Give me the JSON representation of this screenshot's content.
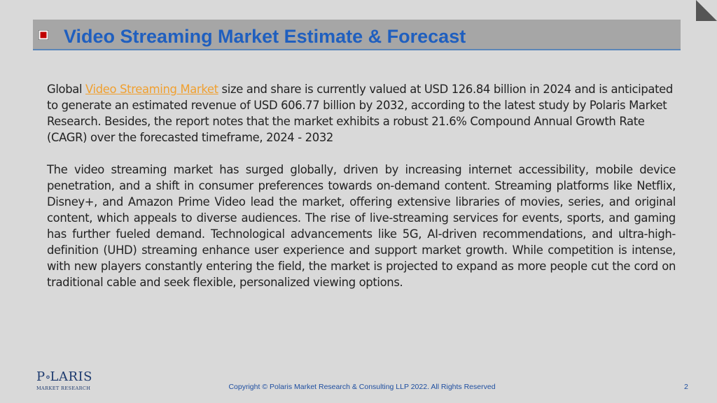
{
  "slide": {
    "title": "Video Streaming Market Estimate & Forecast",
    "page_number": "2"
  },
  "content": {
    "p1_prefix": "Global ",
    "p1_link": "Video Streaming Market",
    "p1_suffix": " size and share is currently valued at USD 126.84 billion in 2024 and is anticipated to generate an estimated revenue of USD 606.77 billion by 2032, according to the latest study by Polaris Market Research. Besides, the report notes that the market exhibits a robust 21.6% Compound Annual Growth Rate (CAGR) over the forecasted timeframe, 2024 - 2032",
    "p2": "The video streaming market has surged globally, driven by increasing internet accessibility, mobile device penetration, and a shift in consumer preferences towards on-demand content. Streaming platforms like Netflix, Disney+, and Amazon Prime Video lead the market, offering extensive libraries of movies, series, and original content, which appeals to diverse audiences. The rise of live-streaming services for events, sports, and gaming has further fueled demand. Technological advancements like 5G, AI-driven recommendations, and ultra-high-definition (UHD) streaming enhance user experience and support market growth. While competition is intense, with new players constantly entering the field, the market is projected to expand as more people cut the cord on traditional cable and seek flexible, personalized viewing options."
  },
  "logo": {
    "word_left": "P",
    "word_right": "LARIS",
    "sub": "MARKET RESEARCH"
  },
  "footer": {
    "copyright": "Copyright © Polaris Market Research & Consulting LLP 2022. All Rights Reserved"
  },
  "colors": {
    "background": "#d9d9d9",
    "title_bar": "#a6a6a6",
    "title_text": "#1f5fbf",
    "link": "#f0a030",
    "footer_text": "#1f4fa0"
  }
}
